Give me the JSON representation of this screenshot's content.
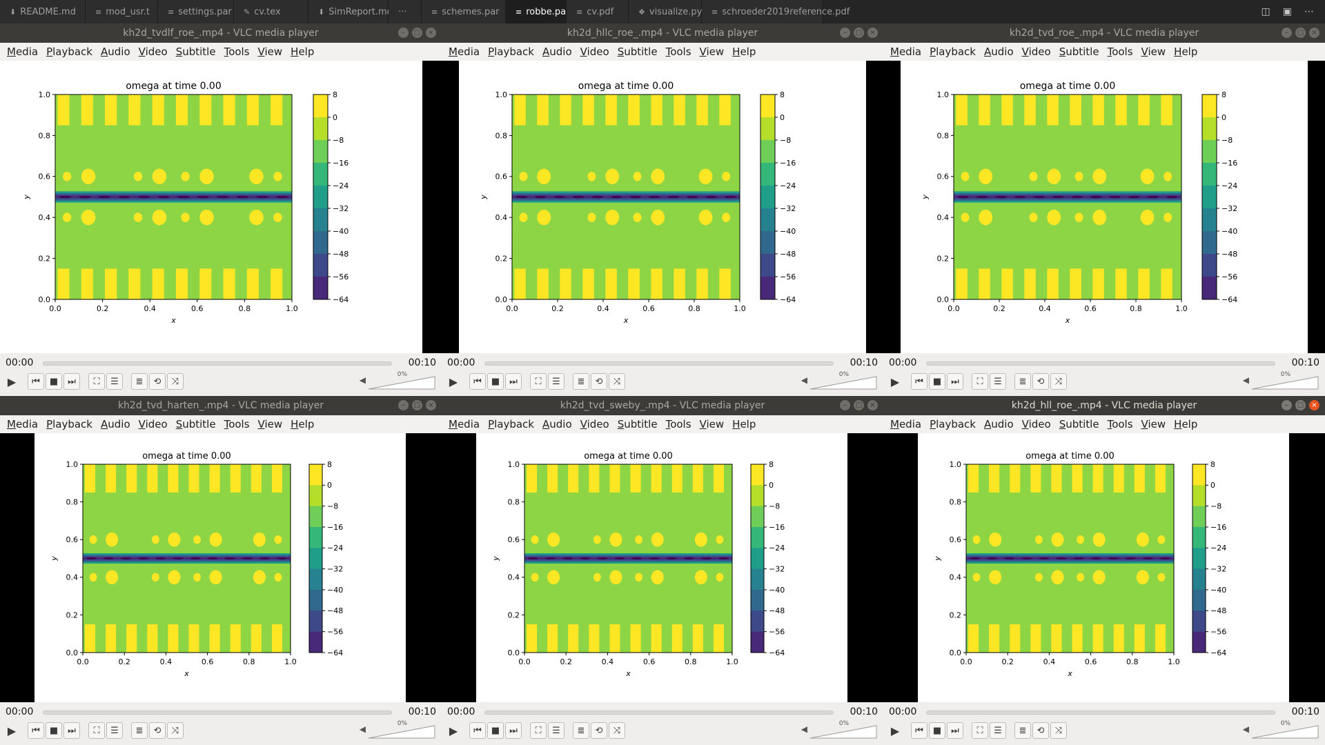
{
  "editor_tabs": [
    {
      "label": "README.md",
      "icon": "markdown-icon",
      "active": false
    },
    {
      "label": "mod_usr.t",
      "icon": "file-lines-icon",
      "active": false
    },
    {
      "label": "settings.par",
      "icon": "file-lines-icon",
      "active": false
    },
    {
      "label": "cv.tex",
      "icon": "tex-icon",
      "active": false
    },
    {
      "label": "SimReport.md",
      "icon": "markdown-icon",
      "active": false,
      "closable": true
    },
    {
      "label": "···",
      "icon": "more-icon",
      "active": false
    },
    {
      "label": "schemes.par",
      "icon": "file-lines-icon",
      "active": false
    },
    {
      "label": "robbe.par",
      "icon": "file-lines-icon",
      "active": true,
      "closable": true
    },
    {
      "label": "cv.pdf",
      "icon": "file-lines-icon",
      "active": false
    },
    {
      "label": "visualize.py",
      "icon": "python-icon",
      "active": false
    },
    {
      "label": "schroeder2019reference.pdf",
      "icon": "file-lines-icon",
      "active": false
    }
  ],
  "tab_close_glyph": "×",
  "menu": [
    "Media",
    "Playback",
    "Audio",
    "Video",
    "Subtitle",
    "Tools",
    "View",
    "Help"
  ],
  "windows": [
    {
      "title": "kh2d_tvdlf_roe_.mp4 - VLC media player",
      "time_current": "00:00",
      "time_total": "00:10",
      "volume": "0%",
      "focused": false
    },
    {
      "title": "kh2d_hllc_roe_.mp4 - VLC media player",
      "time_current": "00:00",
      "time_total": "00:10",
      "volume": "0%",
      "focused": false
    },
    {
      "title": "kh2d_tvd_roe_.mp4 - VLC media player",
      "time_current": "00:00",
      "time_total": "00:10",
      "volume": "0%",
      "focused": false
    },
    {
      "title": "kh2d_tvd_harten_.mp4 - VLC media player",
      "time_current": "00:00",
      "time_total": "00:10",
      "volume": "0%",
      "focused": false
    },
    {
      "title": "kh2d_tvd_sweby_.mp4 - VLC media player",
      "time_current": "00:00",
      "time_total": "00:10",
      "volume": "0%",
      "focused": false
    },
    {
      "title": "kh2d_hll_roe_.mp4 - VLC media player",
      "time_current": "00:00",
      "time_total": "00:10",
      "volume": "0%",
      "focused": true
    }
  ],
  "chart_data": {
    "type": "heatmap",
    "title": "omega at time 0.00",
    "xlabel": "x",
    "ylabel": "y",
    "xlim": [
      0,
      1
    ],
    "ylim": [
      0,
      1
    ],
    "xticks": [
      "0.0",
      "0.2",
      "0.4",
      "0.6",
      "0.8",
      "1.0"
    ],
    "yticks": [
      "0.0",
      "0.2",
      "0.4",
      "0.6",
      "0.8",
      "1.0"
    ],
    "colorbar_ticks": [
      "8",
      "0",
      "−8",
      "−16",
      "−24",
      "−32",
      "−40",
      "−48",
      "−56",
      "−64"
    ],
    "colorbar_levels": [
      8,
      0,
      -8,
      -16,
      -24,
      -32,
      -40,
      -48,
      -56,
      -64
    ],
    "colormap": [
      "#fde725",
      "#b5de2b",
      "#6ece58",
      "#35b779",
      "#1f9e89",
      "#26828e",
      "#31688e",
      "#3e4989",
      "#482878",
      "#440154"
    ],
    "background_color": "#8dd544",
    "stripe_count": 10,
    "shear_layer_y": 0.5,
    "blob_rows_y": [
      0.6,
      0.4
    ]
  }
}
